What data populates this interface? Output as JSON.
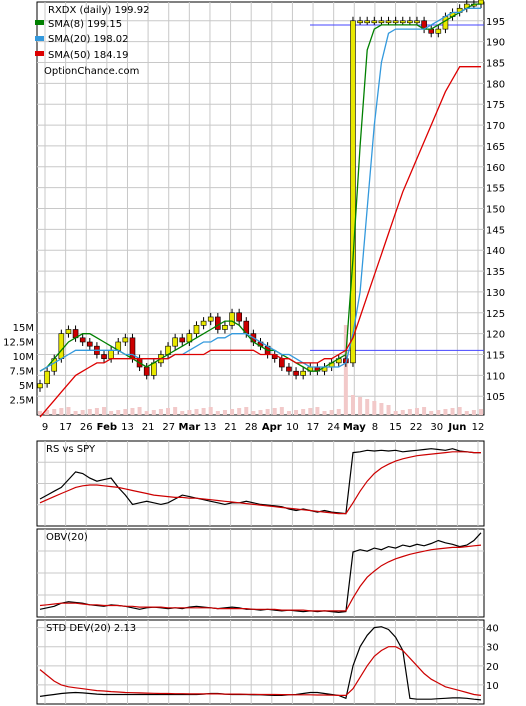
{
  "chart_data": [
    {
      "type": "line",
      "title": "RXDX (daily) 199.92",
      "watermark": "OptionChance.com",
      "legend": [
        {
          "label": "SMA(8) 199.15",
          "color": "#008000"
        },
        {
          "label": "SMA(20) 198.02",
          "color": "#3399dd"
        },
        {
          "label": "SMA(50) 184.19",
          "color": "#dd0000"
        }
      ],
      "x_tick_labels": [
        "9",
        "17",
        "26",
        "Feb",
        "13",
        "21",
        "27",
        "Mar",
        "13",
        "21",
        "28",
        "Apr",
        "10",
        "17",
        "24",
        "May",
        "8",
        "15",
        "22",
        "30",
        "Jun",
        "12"
      ],
      "y_ticks": [
        105,
        110,
        115,
        120,
        125,
        130,
        135,
        140,
        145,
        150,
        155,
        160,
        165,
        170,
        175,
        180,
        185,
        190,
        195
      ],
      "ylim": [
        100.5,
        199.5
      ],
      "volume_ticks": [
        "15M",
        "12.5M",
        "10M",
        "7.5M",
        "5M",
        "2.5M"
      ],
      "series": [
        {
          "name": "SMA(8) 199.15",
          "color": "#008000",
          "values": [
            111,
            112,
            114,
            116,
            118,
            119,
            120,
            120,
            119,
            118,
            117,
            116,
            115,
            114,
            113,
            112,
            113,
            114,
            115,
            116,
            117,
            118,
            119,
            120,
            121,
            122,
            123,
            123,
            122,
            120,
            118,
            117,
            116,
            116,
            115,
            114,
            113,
            112,
            111,
            111,
            112,
            113,
            114,
            115,
            138,
            165,
            188,
            193,
            194,
            194,
            194,
            194,
            194,
            194,
            193,
            193,
            194,
            195,
            196,
            197,
            198,
            199,
            199
          ]
        },
        {
          "name": "SMA(20) 198.02",
          "color": "#3399dd",
          "values": [
            111,
            112,
            113,
            114,
            115,
            116,
            116,
            116,
            116,
            116,
            116,
            116,
            115,
            115,
            114,
            114,
            114,
            114,
            114,
            115,
            115,
            116,
            117,
            118,
            118,
            119,
            119,
            120,
            120,
            120,
            119,
            118,
            117,
            116,
            115,
            115,
            114,
            113,
            112,
            112,
            112,
            112,
            112,
            113,
            120,
            130,
            150,
            170,
            185,
            192,
            193,
            193,
            193,
            193,
            193,
            194,
            195,
            196,
            197,
            197,
            198,
            198,
            198
          ]
        },
        {
          "name": "SMA(50) 184.19",
          "color": "#dd0000",
          "values": [
            100,
            102,
            104,
            106,
            108,
            110,
            111,
            112,
            113,
            113,
            114,
            114,
            114,
            114,
            114,
            114,
            114,
            114,
            114,
            115,
            115,
            115,
            115,
            115,
            116,
            116,
            116,
            116,
            116,
            116,
            116,
            115,
            115,
            115,
            114,
            114,
            113,
            113,
            113,
            113,
            114,
            114,
            115,
            116,
            119,
            124,
            129,
            134,
            139,
            144,
            149,
            154,
            158,
            162,
            166,
            170,
            174,
            178,
            181,
            184,
            184,
            184,
            184
          ]
        }
      ],
      "candles_close": [
        108,
        111,
        114,
        120,
        121,
        119,
        118,
        117,
        115,
        114,
        116,
        118,
        119,
        114,
        112,
        110,
        113,
        115,
        117,
        119,
        118,
        120,
        122,
        123,
        124,
        121,
        122,
        125,
        123,
        120,
        118,
        117,
        115,
        114,
        112,
        111,
        110,
        111,
        112,
        111,
        112,
        113,
        114,
        113,
        195,
        195,
        195,
        195,
        195,
        195,
        195,
        195,
        195,
        195,
        193,
        192,
        193,
        196,
        197,
        198,
        199,
        199,
        200
      ],
      "ref_lines": [
        116,
        194
      ]
    },
    {
      "type": "line",
      "title": "RS vs SPY",
      "series": [
        {
          "name": "RS vs SPY",
          "color": "#000000",
          "values": [
            0.35,
            0.4,
            0.45,
            0.5,
            0.6,
            0.7,
            0.68,
            0.62,
            0.58,
            0.6,
            0.62,
            0.5,
            0.4,
            0.28,
            0.3,
            0.32,
            0.3,
            0.28,
            0.3,
            0.35,
            0.4,
            0.38,
            0.36,
            0.34,
            0.32,
            0.3,
            0.28,
            0.3,
            0.3,
            0.32,
            0.3,
            0.28,
            0.27,
            0.26,
            0.25,
            0.22,
            0.2,
            0.22,
            0.2,
            0.18,
            0.2,
            0.18,
            0.17,
            0.16,
            0.95,
            0.96,
            0.98,
            0.97,
            0.98,
            0.97,
            0.98,
            0.96,
            0.97,
            0.98,
            0.99,
            1.0,
            0.99,
            0.98,
            1.0,
            0.97,
            0.96,
            0.95,
            0.95
          ]
        },
        {
          "name": "average",
          "color": "#cc0000",
          "values": [
            0.3,
            0.34,
            0.38,
            0.42,
            0.46,
            0.5,
            0.52,
            0.53,
            0.53,
            0.52,
            0.51,
            0.5,
            0.48,
            0.46,
            0.44,
            0.42,
            0.4,
            0.39,
            0.38,
            0.37,
            0.37,
            0.36,
            0.36,
            0.35,
            0.34,
            0.33,
            0.32,
            0.31,
            0.3,
            0.29,
            0.28,
            0.27,
            0.26,
            0.25,
            0.24,
            0.23,
            0.22,
            0.21,
            0.2,
            0.19,
            0.18,
            0.17,
            0.16,
            0.16,
            0.3,
            0.45,
            0.58,
            0.68,
            0.75,
            0.8,
            0.84,
            0.87,
            0.89,
            0.91,
            0.92,
            0.93,
            0.94,
            0.95,
            0.96,
            0.96,
            0.96,
            0.95,
            0.95
          ]
        }
      ]
    },
    {
      "type": "line",
      "title": "OBV(20)",
      "series": [
        {
          "name": "OBV(20)",
          "color": "#000000",
          "values": [
            0.1,
            0.12,
            0.14,
            0.18,
            0.2,
            0.19,
            0.18,
            0.16,
            0.15,
            0.14,
            0.16,
            0.15,
            0.14,
            0.12,
            0.1,
            0.12,
            0.13,
            0.12,
            0.11,
            0.12,
            0.11,
            0.13,
            0.14,
            0.13,
            0.12,
            0.11,
            0.12,
            0.13,
            0.12,
            0.1,
            0.1,
            0.09,
            0.1,
            0.09,
            0.08,
            0.09,
            0.08,
            0.07,
            0.08,
            0.07,
            0.08,
            0.07,
            0.06,
            0.07,
            0.85,
            0.88,
            0.86,
            0.9,
            0.88,
            0.92,
            0.9,
            0.94,
            0.92,
            0.95,
            0.93,
            0.96,
            1.0,
            0.97,
            0.95,
            0.92,
            0.94,
            1.0,
            1.1
          ]
        },
        {
          "name": "average",
          "color": "#cc0000",
          "values": [
            0.15,
            0.16,
            0.17,
            0.18,
            0.18,
            0.18,
            0.17,
            0.16,
            0.16,
            0.15,
            0.15,
            0.15,
            0.14,
            0.14,
            0.13,
            0.13,
            0.13,
            0.13,
            0.12,
            0.12,
            0.12,
            0.12,
            0.12,
            0.12,
            0.12,
            0.11,
            0.11,
            0.11,
            0.11,
            0.11,
            0.1,
            0.1,
            0.1,
            0.1,
            0.09,
            0.09,
            0.09,
            0.09,
            0.08,
            0.08,
            0.08,
            0.08,
            0.08,
            0.08,
            0.25,
            0.4,
            0.52,
            0.6,
            0.67,
            0.72,
            0.76,
            0.79,
            0.82,
            0.84,
            0.86,
            0.88,
            0.89,
            0.9,
            0.91,
            0.91,
            0.92,
            0.93,
            0.94
          ]
        }
      ]
    },
    {
      "type": "line",
      "title": "STD DEV(20) 2.13",
      "y_ticks": [
        10,
        20,
        30,
        40
      ],
      "ylim": [
        0,
        44
      ],
      "series": [
        {
          "name": "STD DEV(20) 2.13",
          "color": "#000000",
          "values": [
            4,
            4.5,
            5,
            5.5,
            5.8,
            6,
            5.8,
            5.5,
            5.2,
            5,
            5,
            5,
            5,
            5,
            5,
            5,
            5,
            5,
            5,
            5,
            5,
            5,
            5,
            5.2,
            5.5,
            5.5,
            5.2,
            5,
            5,
            5,
            4.8,
            4.8,
            4.6,
            4.5,
            4.5,
            4.8,
            5,
            5.5,
            6,
            6,
            5.5,
            5,
            4.5,
            3,
            20,
            30,
            36,
            40,
            40.5,
            39,
            35,
            28,
            3,
            2.5,
            2.5,
            2.5,
            2.8,
            3,
            3.2,
            3.2,
            3,
            2.5,
            2.13
          ]
        },
        {
          "name": "average",
          "color": "#cc0000",
          "values": [
            18,
            15,
            12,
            10,
            9,
            8.5,
            8,
            7.5,
            7,
            6.8,
            6.5,
            6.3,
            6,
            5.9,
            5.8,
            5.7,
            5.6,
            5.5,
            5.5,
            5.4,
            5.4,
            5.3,
            5.3,
            5.3,
            5.3,
            5.3,
            5.2,
            5.2,
            5.2,
            5.1,
            5.1,
            5,
            5,
            5,
            4.9,
            4.9,
            4.8,
            4.8,
            4.8,
            4.7,
            4.7,
            4.6,
            4.5,
            4.5,
            8,
            14,
            20,
            25,
            28,
            30,
            30,
            28,
            24,
            20,
            16,
            13,
            11,
            9,
            8,
            7,
            6,
            5,
            4.5
          ]
        }
      ]
    }
  ]
}
